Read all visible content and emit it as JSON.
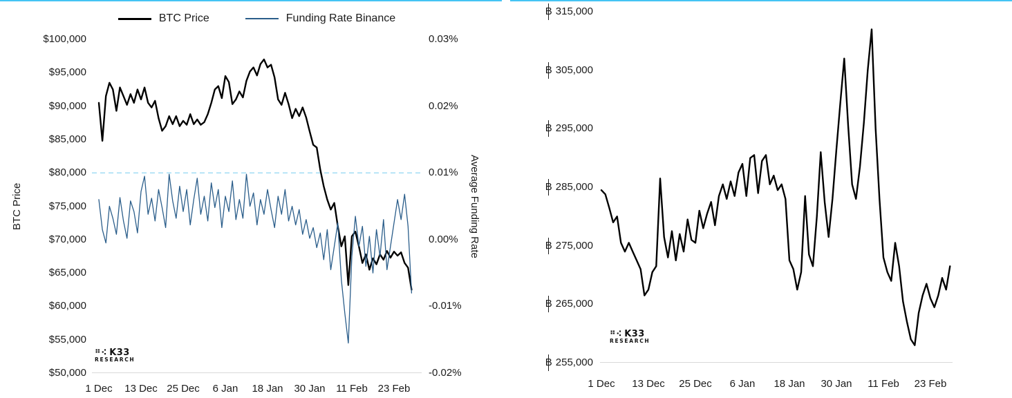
{
  "page": {
    "accent_color": "#45c4f4",
    "background": "#ffffff"
  },
  "branding": {
    "mark": "⠛⠪",
    "name": "K33",
    "subtitle": "RESEARCH"
  },
  "chart_data": [
    {
      "type": "line",
      "legend_position": "top",
      "grid": false,
      "x_ticks": [
        "1 Dec",
        "13 Dec",
        "25 Dec",
        "6 Jan",
        "18 Jan",
        "30 Jan",
        "11 Feb",
        "23 Feb"
      ],
      "x_tick_indices": [
        0,
        12,
        24,
        36,
        48,
        60,
        72,
        84
      ],
      "left_axis": {
        "title": "BTC Price",
        "min": 50000,
        "max": 100000,
        "tick_labels": [
          "$100,000",
          "$95,000",
          "$90,000",
          "$85,000",
          "$80,000",
          "$75,000",
          "$70,000",
          "$65,000",
          "$60,000",
          "$55,000",
          "$50,000"
        ]
      },
      "right_axis": {
        "title": "Average Funding Rate",
        "min": -0.02,
        "max": 0.03,
        "tick_labels": [
          "0.03%",
          "0.02%",
          "0.01%",
          "0.00%",
          "-0.01%",
          "-0.02%"
        ]
      },
      "reference_line": {
        "axis": "right",
        "value": 0.01,
        "color": "#84d2f1",
        "style": "dashed"
      },
      "series": [
        {
          "name": "BTC Price",
          "axis": "left",
          "color": "#000000",
          "width": 2.4,
          "values": [
            90500,
            84800,
            91500,
            93500,
            92500,
            89300,
            92800,
            91500,
            90200,
            91800,
            90500,
            92500,
            91000,
            92800,
            90500,
            89800,
            90800,
            88200,
            86300,
            87000,
            88500,
            87300,
            88500,
            87000,
            87800,
            87200,
            88800,
            87300,
            88000,
            87200,
            87600,
            88800,
            90500,
            92500,
            93000,
            91200,
            94500,
            93600,
            90300,
            91000,
            92200,
            91300,
            93800,
            95200,
            95800,
            94600,
            96300,
            97000,
            95800,
            96200,
            94300,
            91000,
            90200,
            92000,
            90300,
            88200,
            89600,
            88500,
            89800,
            88300,
            86200,
            84200,
            83800,
            80500,
            78000,
            76000,
            74500,
            75500,
            72000,
            69000,
            70500,
            63200,
            70500,
            71200,
            69000,
            66500,
            67800,
            65500,
            67200,
            66300,
            67800,
            67000,
            68300,
            67300,
            68200,
            67600,
            68100,
            66500,
            65800,
            62500
          ]
        },
        {
          "name": "Funding Rate Binance",
          "axis": "right",
          "color": "#2a5d8a",
          "width": 1.3,
          "values": [
            0.006,
            0.0015,
            -0.0005,
            0.005,
            0.0032,
            0.0008,
            0.0063,
            0.0028,
            0.0002,
            0.0058,
            0.0042,
            0.001,
            0.0072,
            0.0095,
            0.0038,
            0.0062,
            0.0028,
            0.0075,
            0.0048,
            0.0018,
            0.0098,
            0.0058,
            0.0032,
            0.008,
            0.0042,
            0.0075,
            0.0022,
            0.006,
            0.0092,
            0.0038,
            0.0065,
            0.0028,
            0.0085,
            0.0048,
            0.0075,
            0.0018,
            0.0065,
            0.0042,
            0.0088,
            0.003,
            0.006,
            0.0032,
            0.0098,
            0.005,
            0.007,
            0.0022,
            0.006,
            0.0038,
            0.0075,
            0.0045,
            0.0018,
            0.0065,
            0.0038,
            0.0075,
            0.0028,
            0.005,
            0.0022,
            0.0045,
            0.0008,
            0.003,
            0.0002,
            0.0018,
            -0.0012,
            0.001,
            -0.003,
            0.0015,
            -0.0045,
            -0.001,
            0.0025,
            -0.006,
            -0.011,
            -0.0155,
            -0.0025,
            0.0035,
            -0.001,
            0.002,
            -0.004,
            0.0005,
            -0.005,
            0.0015,
            -0.0025,
            0.003,
            -0.0045,
            -0.001,
            0.0025,
            0.006,
            0.003,
            0.0068,
            0.002,
            -0.008
          ]
        }
      ]
    },
    {
      "type": "line",
      "grid": false,
      "x_ticks": [
        "1 Dec",
        "13 Dec",
        "25 Dec",
        "6 Jan",
        "18 Jan",
        "30 Jan",
        "11 Feb",
        "23 Feb"
      ],
      "x_tick_indices": [
        0,
        12,
        24,
        36,
        48,
        60,
        72,
        84
      ],
      "left_axis": {
        "currency_prefix": "฿",
        "min": 255000,
        "max": 315000,
        "tick_labels": [
          "315,000",
          "305,000",
          "295,000",
          "285,000",
          "275,000",
          "265,000",
          "255,000"
        ]
      },
      "series": [
        {
          "name": "",
          "axis": "left",
          "color": "#000000",
          "width": 2.4,
          "values": [
            284500,
            283800,
            281500,
            279000,
            280000,
            275500,
            274000,
            275500,
            274000,
            272500,
            271000,
            266500,
            267500,
            270500,
            271500,
            286500,
            276500,
            273000,
            277500,
            272500,
            277000,
            274000,
            279500,
            276000,
            275500,
            281000,
            278000,
            280500,
            282500,
            278500,
            283500,
            285500,
            283000,
            286000,
            283500,
            287500,
            289000,
            283500,
            290000,
            290500,
            284000,
            289500,
            290500,
            285500,
            287000,
            284500,
            285500,
            283000,
            272500,
            271000,
            267500,
            270500,
            283500,
            273500,
            271500,
            280000,
            291000,
            282500,
            276500,
            283000,
            291500,
            299500,
            307000,
            295500,
            285500,
            283000,
            288500,
            296000,
            305000,
            312000,
            295000,
            283000,
            273000,
            270500,
            269000,
            275500,
            271500,
            265500,
            262000,
            259000,
            258000,
            263500,
            266500,
            268500,
            266000,
            264500,
            266500,
            269500,
            267500,
            271500
          ]
        }
      ]
    }
  ]
}
